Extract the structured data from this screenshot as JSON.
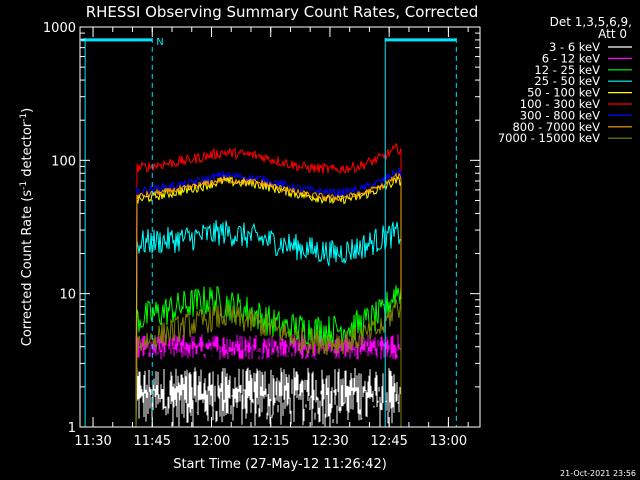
{
  "chart_data": {
    "type": "line",
    "title": "RHESSI Observing Summary Count Rates, Corrected",
    "xlabel": "Start Time (27-May-12 11:26:42)",
    "ylabel_parts": [
      "Corrected Count Rate (s",
      "-1",
      " detector",
      "-1",
      ")"
    ],
    "yscale": "log",
    "ylim": [
      1,
      1000
    ],
    "xlim": [
      "11:26:42",
      "13:08:00"
    ],
    "x_ticks": [
      "11:30",
      "11:45",
      "12:00",
      "12:15",
      "12:30",
      "12:45",
      "13:00"
    ],
    "y_ticks": [
      "1",
      "10",
      "100",
      "1000"
    ],
    "data_window": [
      "11:41:00",
      "12:48:00"
    ],
    "legend_header": [
      "Det 1,3,5,6,9,",
      "Att 0"
    ],
    "series": [
      {
        "name": "3 - 6 keV",
        "color": "#ffffff",
        "style": "noise",
        "min": 1.0,
        "max": 2.8,
        "spike": "left-spike",
        "anchors": [
          [
            11.7,
            1.8
          ],
          [
            12.0,
            1.8
          ],
          [
            12.3,
            1.8
          ],
          [
            12.75,
            1.8
          ]
        ]
      },
      {
        "name": "6 - 12 keV",
        "color": "#ff00ff",
        "style": "noise",
        "min": 3.2,
        "max": 5.0,
        "anchors": [
          [
            11.7,
            4.0
          ],
          [
            12.0,
            4.0
          ],
          [
            12.3,
            3.9
          ],
          [
            12.75,
            4.0
          ]
        ]
      },
      {
        "name": "12 - 25 keV",
        "color": "#00ff00",
        "style": "trend",
        "jitter": 0.12,
        "anchors": [
          [
            11.7,
            6.5
          ],
          [
            11.9,
            8.3
          ],
          [
            12.0,
            9.0
          ],
          [
            12.15,
            7.5
          ],
          [
            12.3,
            5.6
          ],
          [
            12.5,
            5.3
          ],
          [
            12.62,
            5.8
          ],
          [
            12.72,
            7.0
          ],
          [
            12.78,
            10.5
          ]
        ]
      },
      {
        "name": "25 - 50 keV",
        "color": "#00ffff",
        "style": "trend",
        "jitter": 0.1,
        "anchors": [
          [
            11.7,
            24
          ],
          [
            11.9,
            26
          ],
          [
            12.05,
            29
          ],
          [
            12.2,
            26
          ],
          [
            12.38,
            22
          ],
          [
            12.52,
            20
          ],
          [
            12.62,
            22
          ],
          [
            12.72,
            26
          ],
          [
            12.78,
            28
          ]
        ]
      },
      {
        "name": "50 - 100 keV",
        "color": "#ffff00",
        "style": "trend",
        "jitter": 0.035,
        "anchors": [
          [
            11.7,
            51
          ],
          [
            11.9,
            60
          ],
          [
            12.05,
            70
          ],
          [
            12.2,
            66
          ],
          [
            12.38,
            55
          ],
          [
            12.52,
            50
          ],
          [
            12.62,
            53
          ],
          [
            12.72,
            62
          ],
          [
            12.78,
            70
          ]
        ]
      },
      {
        "name": "100 - 300 keV",
        "color": "#ff0000",
        "style": "trend",
        "jitter": 0.04,
        "anchors": [
          [
            11.7,
            88
          ],
          [
            11.9,
            100
          ],
          [
            12.05,
            115
          ],
          [
            12.2,
            108
          ],
          [
            12.38,
            89
          ],
          [
            12.52,
            85
          ],
          [
            12.62,
            90
          ],
          [
            12.72,
            105
          ],
          [
            12.78,
            122
          ]
        ]
      },
      {
        "name": "300 - 800 keV",
        "color": "#0000ff",
        "style": "trend",
        "jitter": 0.03,
        "anchors": [
          [
            11.7,
            59
          ],
          [
            11.9,
            67
          ],
          [
            12.05,
            78
          ],
          [
            12.2,
            73
          ],
          [
            12.38,
            61
          ],
          [
            12.52,
            57
          ],
          [
            12.62,
            60
          ],
          [
            12.72,
            70
          ],
          [
            12.78,
            82
          ]
        ]
      },
      {
        "name": "800 - 7000 keV",
        "color": "#ffa500",
        "style": "trend",
        "jitter": 0.025,
        "anchors": [
          [
            11.7,
            54
          ],
          [
            11.9,
            62
          ],
          [
            12.05,
            72
          ],
          [
            12.2,
            68
          ],
          [
            12.38,
            56
          ],
          [
            12.52,
            52
          ],
          [
            12.62,
            55
          ],
          [
            12.72,
            64
          ],
          [
            12.78,
            75
          ]
        ]
      },
      {
        "name": "7000 - 15000 keV",
        "color": "#808000",
        "style": "trend",
        "jitter": 0.1,
        "anchors": [
          [
            11.7,
            4.3
          ],
          [
            11.9,
            5.8
          ],
          [
            12.05,
            6.8
          ],
          [
            12.2,
            6.0
          ],
          [
            12.38,
            4.5
          ],
          [
            12.52,
            4.3
          ],
          [
            12.62,
            4.6
          ],
          [
            12.72,
            5.6
          ],
          [
            12.78,
            8.0
          ]
        ]
      }
    ],
    "legend_placement": "top-right, outside plot",
    "grid": false
  },
  "overlays": {
    "color": "#00e5ff",
    "night_label": "N",
    "solid_lines": [
      "11:28:00",
      "12:44:00"
    ],
    "dashed_lines": [
      "11:45:00",
      "13:02:00"
    ],
    "bars": [
      {
        "from": "11:27:00",
        "to": "11:45:00"
      },
      {
        "from": "12:44:00",
        "to": "13:02:00"
      }
    ],
    "bar_value": 800
  },
  "footer_timestamp": "21-Oct-2021 23:56"
}
